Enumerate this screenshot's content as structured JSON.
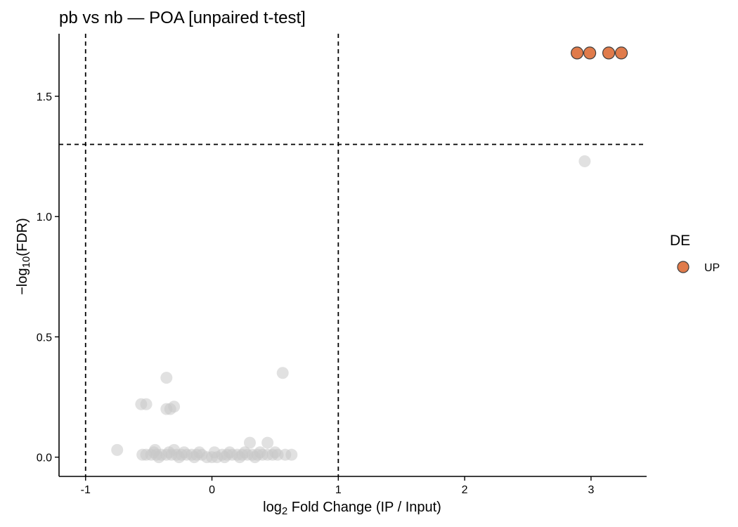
{
  "chart_data": {
    "type": "scatter",
    "title": "pb vs nb — POA [unpaired t-test]",
    "xlabel": {
      "prefix": "log",
      "subscript": "2",
      "suffix": " Fold Change (IP / Input)"
    },
    "ylabel": {
      "prefix": "−log",
      "subscript": "10",
      "suffix": "(FDR)"
    },
    "xlim": [
      -1.21,
      3.44
    ],
    "ylim": [
      -0.08,
      1.76
    ],
    "x_ticks": [
      -1,
      0,
      1,
      2,
      3
    ],
    "x_tick_labels": [
      "-1",
      "0",
      "1",
      "2",
      "3"
    ],
    "y_ticks": [
      0.0,
      0.5,
      1.0,
      1.5
    ],
    "y_tick_labels": [
      "0.0",
      "0.5",
      "1.0",
      "1.5"
    ],
    "grid": false,
    "thresholds": {
      "x": [
        -1,
        1
      ],
      "y": 1.3
    },
    "legend": {
      "title": "DE",
      "placement": "right",
      "entries": [
        {
          "label": "UP",
          "color": "#E07B4B"
        }
      ]
    },
    "colors": {
      "up": "#E07B4B",
      "up_stroke": "#3d3d3d",
      "ns": "#C8C8C8"
    },
    "series": [
      {
        "name": "UP",
        "points": [
          [
            2.89,
            1.68
          ],
          [
            2.99,
            1.68
          ],
          [
            3.14,
            1.68
          ],
          [
            3.24,
            1.68
          ]
        ]
      },
      {
        "points": [
          [
            2.95,
            1.23
          ],
          [
            0.56,
            0.35
          ],
          [
            -0.36,
            0.33
          ],
          [
            -0.56,
            0.22
          ],
          [
            -0.52,
            0.22
          ],
          [
            -0.36,
            0.2
          ],
          [
            -0.3,
            0.21
          ],
          [
            -0.33,
            0.2
          ],
          [
            -0.75,
            0.03
          ],
          [
            -0.45,
            0.03
          ],
          [
            -0.3,
            0.03
          ],
          [
            0.3,
            0.06
          ],
          [
            0.44,
            0.06
          ],
          [
            -0.55,
            0.01
          ],
          [
            -0.52,
            0.01
          ],
          [
            -0.48,
            0.01
          ],
          [
            -0.44,
            0.01
          ],
          [
            -0.4,
            0.01
          ],
          [
            -0.36,
            0.01
          ],
          [
            -0.32,
            0.01
          ],
          [
            -0.28,
            0.01
          ],
          [
            -0.24,
            0.01
          ],
          [
            -0.2,
            0.01
          ],
          [
            -0.16,
            0.01
          ],
          [
            -0.12,
            0.01
          ],
          [
            -0.08,
            0.01
          ],
          [
            -0.04,
            0.0
          ],
          [
            0.0,
            0.0
          ],
          [
            0.04,
            0.0
          ],
          [
            0.08,
            0.01
          ],
          [
            0.12,
            0.01
          ],
          [
            0.16,
            0.01
          ],
          [
            0.2,
            0.01
          ],
          [
            0.24,
            0.01
          ],
          [
            0.28,
            0.01
          ],
          [
            0.32,
            0.01
          ],
          [
            0.36,
            0.01
          ],
          [
            0.4,
            0.01
          ],
          [
            0.44,
            0.01
          ],
          [
            0.48,
            0.01
          ],
          [
            0.52,
            0.01
          ],
          [
            0.58,
            0.01
          ],
          [
            0.63,
            0.01
          ],
          [
            -0.46,
            0.02
          ],
          [
            -0.34,
            0.02
          ],
          [
            -0.22,
            0.02
          ],
          [
            -0.1,
            0.02
          ],
          [
            0.02,
            0.02
          ],
          [
            0.14,
            0.02
          ],
          [
            0.26,
            0.02
          ],
          [
            0.38,
            0.02
          ],
          [
            0.5,
            0.02
          ],
          [
            -0.42,
            0.0
          ],
          [
            -0.26,
            0.0
          ],
          [
            -0.14,
            0.0
          ],
          [
            0.1,
            0.0
          ],
          [
            0.22,
            0.0
          ],
          [
            0.34,
            0.0
          ]
        ]
      }
    ]
  }
}
